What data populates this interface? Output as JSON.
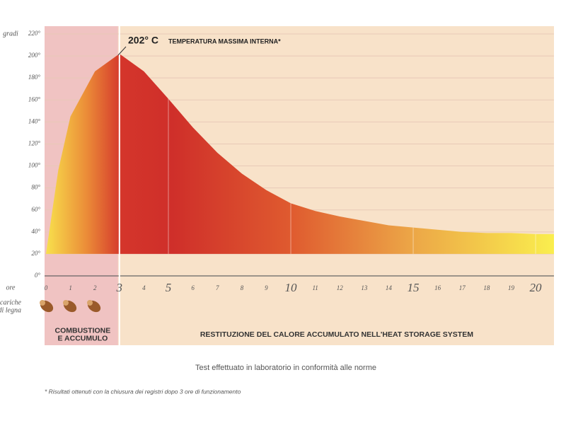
{
  "chart_data": {
    "type": "area",
    "title": "202° C",
    "subtitle": "TEMPERATURA MASSIMA INTERNA*",
    "y_label": "gradi",
    "x_label": "ore",
    "loads_label": [
      "cariche",
      "di legna"
    ],
    "x": [
      0,
      0.5,
      1,
      2,
      3,
      4,
      5,
      6,
      7,
      8,
      9,
      10,
      11,
      12,
      13,
      14,
      15,
      16,
      17,
      18,
      19,
      20,
      20.75
    ],
    "values": [
      20,
      96,
      145,
      186,
      202,
      186,
      161,
      135,
      112,
      93,
      78,
      66,
      59,
      54,
      50,
      46,
      44,
      42,
      40,
      39,
      39,
      38,
      38
    ],
    "xlim": [
      0,
      20.75
    ],
    "ylim": [
      0,
      220
    ],
    "yticks": [
      {
        "value": 0,
        "label": "0°"
      },
      {
        "value": 20,
        "label": "20°"
      },
      {
        "value": 40,
        "label": "40°"
      },
      {
        "value": 60,
        "label": "60°"
      },
      {
        "value": 80,
        "label": "80°"
      },
      {
        "value": 100,
        "label": "100°"
      },
      {
        "value": 120,
        "label": "120°"
      },
      {
        "value": 140,
        "label": "140°"
      },
      {
        "value": 160,
        "label": "160°"
      },
      {
        "value": 180,
        "label": "180°"
      },
      {
        "value": 200,
        "label": "200°"
      },
      {
        "value": 220,
        "label": "220°"
      }
    ],
    "xticks": [
      0,
      1,
      2,
      3,
      4,
      5,
      6,
      7,
      8,
      9,
      10,
      11,
      12,
      13,
      14,
      15,
      16,
      17,
      18,
      19,
      20
    ],
    "highlighted_xticks": [
      3,
      5,
      10,
      15,
      20
    ],
    "phases": [
      {
        "label": [
          "COMBUSTIONE",
          "E ACCUMULO"
        ],
        "from": 0,
        "to": 3,
        "color": "#f0c3c2"
      },
      {
        "label": [
          "RESTITUZIONE DEL CALORE ACCUMULATO NELL'HEAT STORAGE SYSTEM"
        ],
        "from": 3,
        "to": 20.75,
        "color": "#f8e2c9"
      }
    ],
    "grid": true,
    "note": "Test effettuato in laboratorio in conformità alle norme",
    "footnote": "* Risultati ottenuti con la chiusura dei registri dopo 3 ore di funzionamento"
  }
}
